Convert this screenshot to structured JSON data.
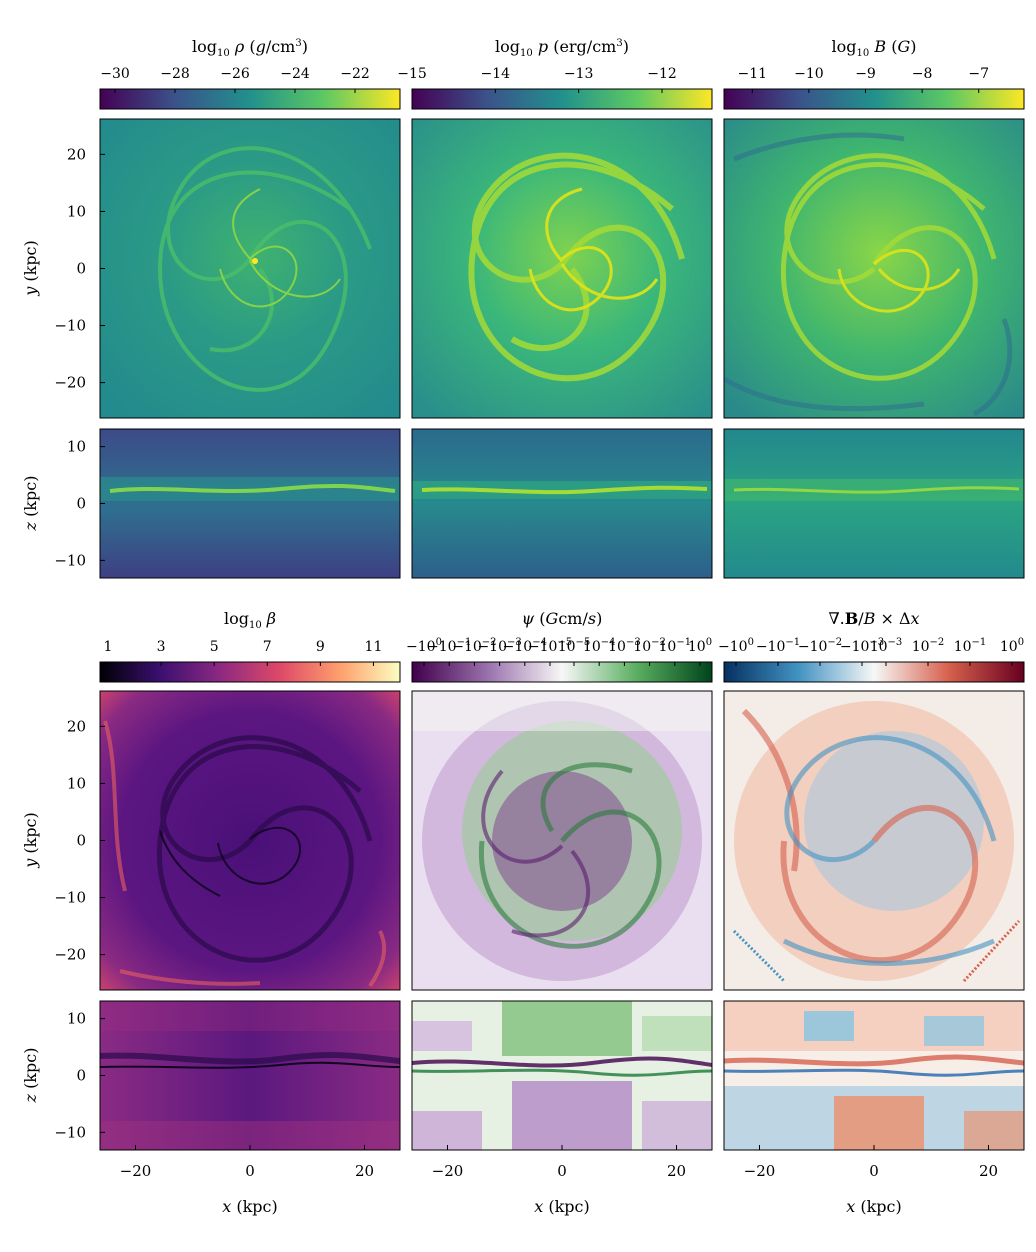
{
  "chart_data": [
    {
      "type": "heatmap",
      "panel": "top-left",
      "title": "log10 ρ (g/cm^3)",
      "colormap": "viridis",
      "colorbar": {
        "ticks": [
          "−30",
          "−28",
          "−26",
          "−24",
          "−22"
        ],
        "range": [
          -30.5,
          -20.5
        ]
      },
      "ylabel_face": "y (kpc)",
      "ylabel_edge": "z (kpc)",
      "y_ticks_face": [
        "20",
        "10",
        "0",
        "−10",
        "−20"
      ],
      "y_ticks_edge": [
        "10",
        "0",
        "−10"
      ]
    },
    {
      "type": "heatmap",
      "panel": "top-middle",
      "title": "log10 p (erg/cm^3)",
      "colormap": "viridis",
      "colorbar": {
        "ticks": [
          "−15",
          "−14",
          "−13",
          "−12"
        ],
        "range": [
          -15.0,
          -11.4
        ]
      }
    },
    {
      "type": "heatmap",
      "panel": "top-right",
      "title": "log10 B (G)",
      "colormap": "viridis",
      "colorbar": {
        "ticks": [
          "−11",
          "−10",
          "−9",
          "−8",
          "−7"
        ],
        "range": [
          -11.5,
          -6.2
        ]
      }
    },
    {
      "type": "heatmap",
      "panel": "bottom-left",
      "title": "log10 β",
      "colormap": "magma",
      "colorbar": {
        "ticks": [
          "1",
          "3",
          "5",
          "7",
          "9",
          "11"
        ],
        "range": [
          0.7,
          12
        ]
      },
      "xlabel": "x (kpc)",
      "x_ticks": [
        "−20",
        "0",
        "20"
      ],
      "ylabel_face": "y (kpc)",
      "ylabel_edge": "z (kpc)",
      "y_ticks_face": [
        "20",
        "10",
        "0",
        "−10",
        "−20"
      ],
      "y_ticks_edge": [
        "10",
        "0",
        "−10"
      ]
    },
    {
      "type": "heatmap",
      "panel": "bottom-middle",
      "title": "ψ (Gcm/s)",
      "colormap": "PRGn (symlog)",
      "colorbar": {
        "ticks": [
          "−10^0",
          "−10^−1",
          "−10^−2",
          "−10^−3",
          "−10^−4",
          "−10^−5",
          "10^−5",
          "10^−4",
          "10^−3",
          "10^−2",
          "10^−1",
          "10^0"
        ]
      },
      "xlabel": "x (kpc)",
      "x_ticks": [
        "−20",
        "0",
        "20"
      ]
    },
    {
      "type": "heatmap",
      "panel": "bottom-right",
      "title": "∇.B/B × Δx",
      "colormap": "RdBu_r (symlog)",
      "colorbar": {
        "ticks": [
          "−10^0",
          "−10^−1",
          "−10^−2",
          "−10^−3",
          "10^−3",
          "10^−2",
          "10^−1",
          "10^0"
        ]
      },
      "xlabel": "x (kpc)",
      "x_ticks": [
        "−20",
        "0",
        "20"
      ]
    }
  ],
  "colors": {
    "viridis": [
      "#440154",
      "#3b528b",
      "#21918c",
      "#5ec962",
      "#fde725"
    ],
    "magma": [
      "#000004",
      "#3b0f70",
      "#8c2981",
      "#de4968",
      "#fe9f6d",
      "#fcfdbf"
    ],
    "prgn": [
      "#40004b",
      "#9970ab",
      "#f7f7f7",
      "#5aae61",
      "#00441b"
    ],
    "rdbu": [
      "#053061",
      "#4393c3",
      "#f7f7f7",
      "#d6604d",
      "#67001f"
    ]
  }
}
